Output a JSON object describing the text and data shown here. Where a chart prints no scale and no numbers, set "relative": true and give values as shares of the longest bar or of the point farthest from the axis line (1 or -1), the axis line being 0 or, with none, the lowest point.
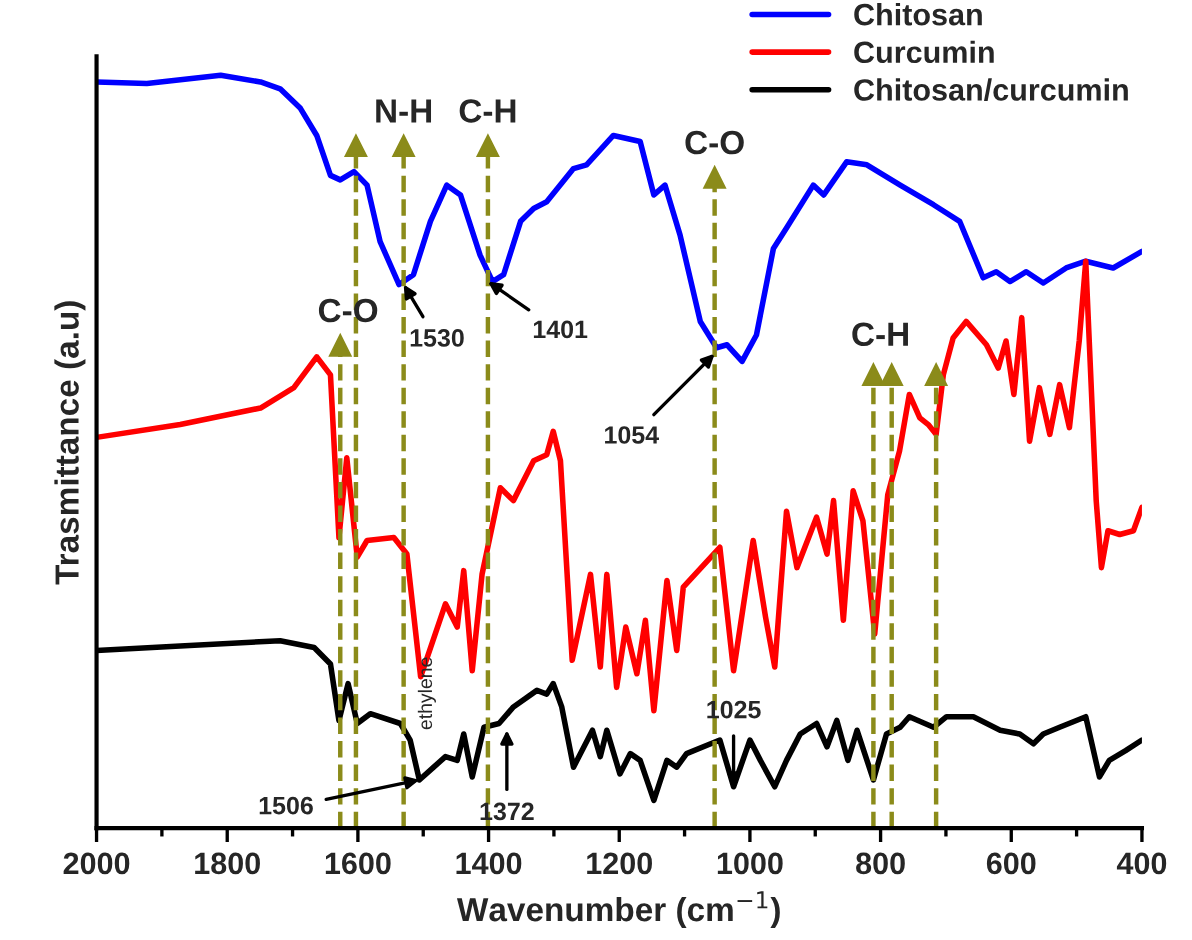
{
  "chart_data": {
    "type": "line",
    "relative": true,
    "xlabel": "Wavenumber (cm$^{−1}$)",
    "ylabel": "Trasmittance (a.u)",
    "xlim": [
      2000,
      400
    ],
    "xticks": [
      2000,
      {
        "value": 1900,
        "label": null
      },
      1800,
      {
        "value": 1700,
        "label": null
      },
      1600,
      {
        "value": 1500,
        "label": null
      },
      1400,
      {
        "value": 1300,
        "label": null
      },
      1200,
      {
        "value": 1100,
        "label": null
      },
      1000,
      {
        "value": 900,
        "label": null
      },
      800,
      {
        "value": 700,
        "label": null
      },
      600,
      {
        "value": 500,
        "label": null
      },
      400
    ],
    "tick_labels": "x",
    "grid": false,
    "legend": "top right",
    "marker": "none",
    "line_style": "solid",
    "series": [
      {
        "name": "Chitosan",
        "color": "#0000ff",
        "x": [
          2000,
          1923,
          1810,
          1749,
          1719,
          1688,
          1663,
          1642,
          1627,
          1606,
          1586,
          1566,
          1537,
          1515,
          1489,
          1464,
          1443,
          1413,
          1394,
          1377,
          1351,
          1331,
          1311,
          1270,
          1250,
          1209,
          1168,
          1147,
          1130,
          1107,
          1076,
          1051,
          1035,
          1012,
          990,
          964,
          944,
          903,
          887,
          852,
          821,
          770,
          719,
          679,
          643,
          623,
          602,
          577,
          551,
          516,
          486,
          444,
          400
        ],
        "values": [
          0.991,
          0.989,
          1.0,
          0.991,
          0.982,
          0.956,
          0.92,
          0.867,
          0.861,
          0.872,
          0.854,
          0.779,
          0.722,
          0.735,
          0.806,
          0.854,
          0.841,
          0.761,
          0.726,
          0.735,
          0.806,
          0.823,
          0.832,
          0.876,
          0.881,
          0.92,
          0.912,
          0.841,
          0.854,
          0.788,
          0.673,
          0.638,
          0.642,
          0.62,
          0.655,
          0.77,
          0.797,
          0.854,
          0.841,
          0.885,
          0.881,
          0.854,
          0.828,
          0.806,
          0.731,
          0.739,
          0.726,
          0.739,
          0.724,
          0.744,
          0.753,
          0.744,
          0.766
        ]
      },
      {
        "name": "Curcumin",
        "color": "#ff0000",
        "x": [
          2000,
          1872,
          1749,
          1698,
          1663,
          1642,
          1629,
          1617,
          1601,
          1586,
          1545,
          1525,
          1504,
          1466,
          1448,
          1438,
          1425,
          1410,
          1382,
          1362,
          1331,
          1311,
          1301,
          1290,
          1272,
          1244,
          1229,
          1219,
          1204,
          1190,
          1173,
          1160,
          1147,
          1127,
          1112,
          1102,
          1046,
          1025,
          995,
          976,
          962,
          944,
          928,
          898,
          882,
          872,
          857,
          842,
          827,
          809,
          789,
          771,
          756,
          740,
          727,
          715,
          704,
          689,
          669,
          638,
          620,
          608,
          596,
          584,
          572,
          557,
          541,
          526,
          511,
          496,
          486,
          470,
          462,
          452,
          434,
          413,
          400
        ],
        "values": [
          0.519,
          0.536,
          0.558,
          0.585,
          0.626,
          0.602,
          0.386,
          0.492,
          0.36,
          0.382,
          0.386,
          0.364,
          0.201,
          0.298,
          0.267,
          0.342,
          0.209,
          0.337,
          0.452,
          0.435,
          0.488,
          0.496,
          0.527,
          0.488,
          0.223,
          0.337,
          0.214,
          0.337,
          0.187,
          0.267,
          0.205,
          0.276,
          0.156,
          0.329,
          0.236,
          0.32,
          0.373,
          0.209,
          0.382,
          0.28,
          0.214,
          0.421,
          0.346,
          0.413,
          0.364,
          0.435,
          0.276,
          0.448,
          0.408,
          0.258,
          0.443,
          0.501,
          0.576,
          0.545,
          0.536,
          0.523,
          0.602,
          0.651,
          0.673,
          0.642,
          0.611,
          0.647,
          0.576,
          0.678,
          0.514,
          0.585,
          0.523,
          0.589,
          0.532,
          0.647,
          0.753,
          0.435,
          0.346,
          0.395,
          0.39,
          0.395,
          0.426
        ]
      },
      {
        "name": "Chitosan/curcumin",
        "color": "#000000",
        "x": [
          2000,
          1872,
          1719,
          1667,
          1642,
          1629,
          1615,
          1601,
          1581,
          1535,
          1520,
          1506,
          1484,
          1466,
          1448,
          1438,
          1425,
          1407,
          1384,
          1362,
          1326,
          1311,
          1301,
          1288,
          1270,
          1241,
          1229,
          1219,
          1199,
          1183,
          1168,
          1147,
          1127,
          1112,
          1097,
          1046,
          1025,
          1000,
          984,
          962,
          944,
          923,
          898,
          882,
          867,
          850,
          836,
          811,
          791,
          770,
          756,
          719,
          699,
          658,
          617,
          587,
          566,
          551,
          526,
          486,
          465,
          450,
          425,
          400
        ],
        "values": [
          0.236,
          0.242,
          0.249,
          0.24,
          0.218,
          0.143,
          0.192,
          0.139,
          0.152,
          0.139,
          0.117,
          0.064,
          0.081,
          0.095,
          0.09,
          0.125,
          0.068,
          0.134,
          0.139,
          0.161,
          0.183,
          0.178,
          0.192,
          0.161,
          0.081,
          0.13,
          0.095,
          0.13,
          0.072,
          0.099,
          0.09,
          0.037,
          0.09,
          0.081,
          0.099,
          0.117,
          0.055,
          0.117,
          0.09,
          0.055,
          0.09,
          0.125,
          0.139,
          0.108,
          0.143,
          0.09,
          0.13,
          0.064,
          0.125,
          0.134,
          0.148,
          0.134,
          0.148,
          0.148,
          0.13,
          0.125,
          0.112,
          0.125,
          0.134,
          0.148,
          0.068,
          0.09,
          0.103,
          0.117
        ]
      }
    ],
    "ref_lines": [
      {
        "axis": "x",
        "value": 1627,
        "color": "#8b8b1a",
        "line_style": "dashed"
      },
      {
        "axis": "x",
        "value": 1603,
        "color": "#8b8b1a",
        "line_style": "dashed"
      },
      {
        "axis": "x",
        "value": 1530,
        "color": "#8b8b1a",
        "line_style": "dashed"
      },
      {
        "axis": "x",
        "value": 1401,
        "color": "#8b8b1a",
        "line_style": "dashed"
      },
      {
        "axis": "x",
        "value": 1054,
        "color": "#8b8b1a",
        "line_style": "dashed"
      },
      {
        "axis": "x",
        "value": 811,
        "color": "#8b8b1a",
        "line_style": "dashed"
      },
      {
        "axis": "x",
        "value": 783,
        "color": "#8b8b1a",
        "line_style": "dashed"
      },
      {
        "axis": "x",
        "value": 715,
        "color": "#8b8b1a",
        "line_style": "dashed"
      }
    ],
    "annotations": [
      {
        "text": "N-H",
        "x": 1530,
        "y": 0.906
      },
      {
        "text": "C-H",
        "x": 1401,
        "y": 0.906
      },
      {
        "text": "C-O",
        "x": 1054,
        "y": 0.864
      },
      {
        "text": "C-O",
        "x": 1615,
        "y": 0.641
      },
      {
        "text": "C-H",
        "x": 783,
        "y": 0.602
      },
      {
        "text": "1530",
        "x": 1530,
        "y": 0.722
      },
      {
        "text": "1401",
        "x": 1401,
        "y": 0.726
      },
      {
        "text": "1054",
        "x": 1054,
        "y": 0.63
      },
      {
        "text": "1506",
        "x": 1506,
        "y": 0.064
      },
      {
        "text": "1372",
        "x": 1372,
        "y": 0.13
      },
      {
        "text": "1025",
        "x": 1025,
        "y": 0.055
      },
      "ethylene"
    ]
  }
}
